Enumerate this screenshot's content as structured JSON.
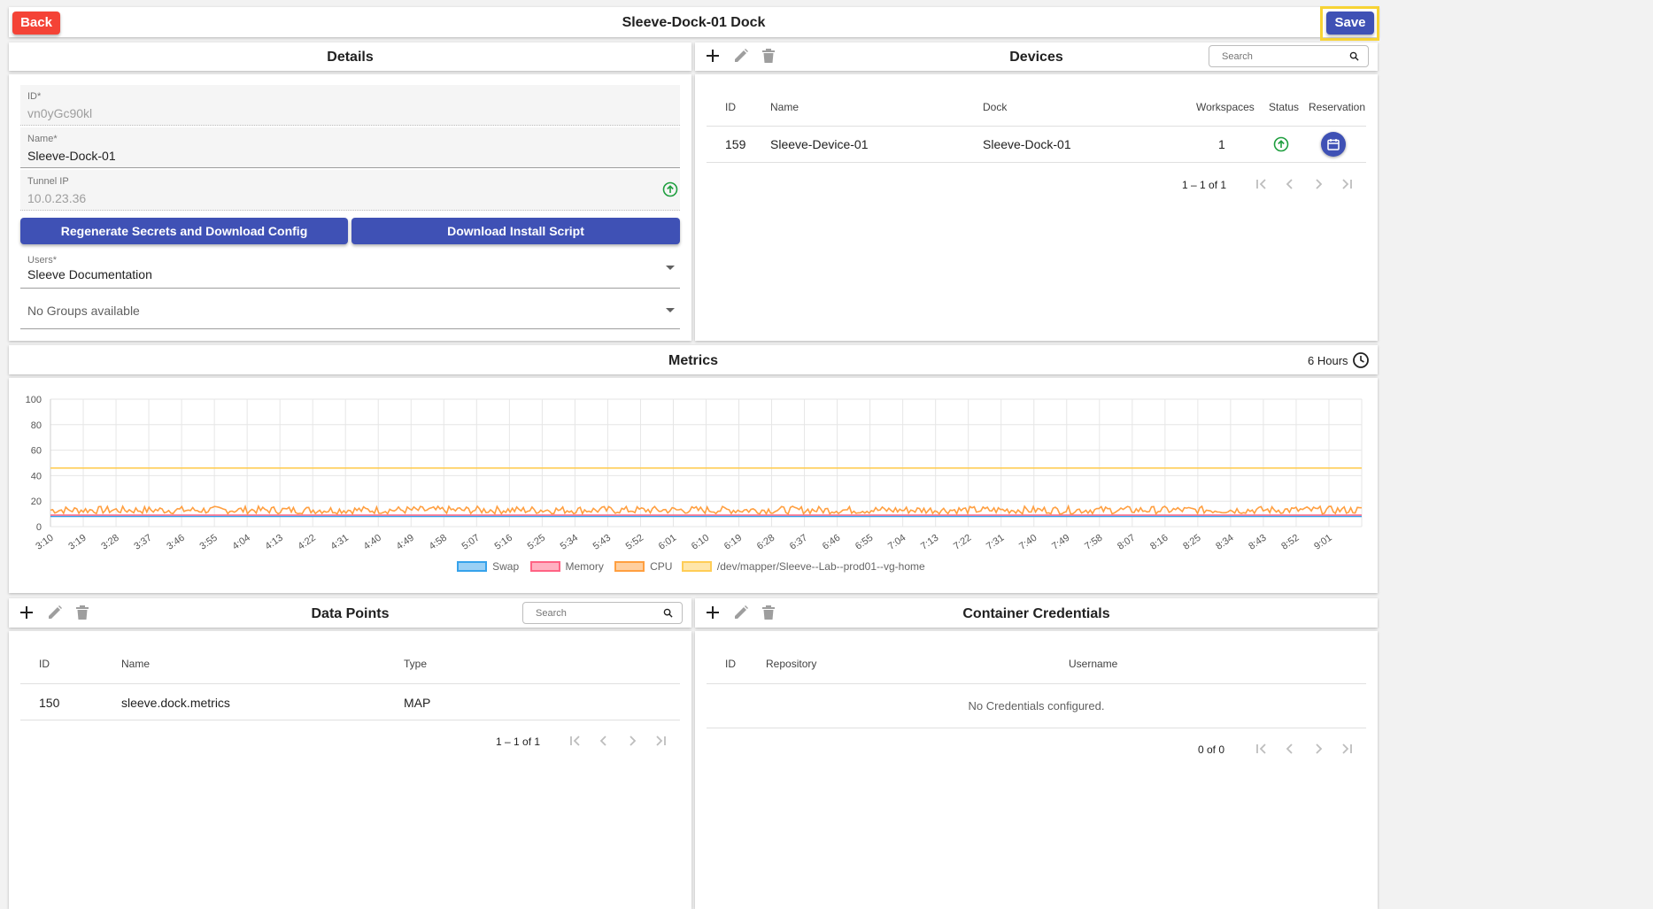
{
  "header": {
    "title": "Sleeve-Dock-01 Dock",
    "back_label": "Back",
    "save_label": "Save"
  },
  "details": {
    "title": "Details",
    "id_label": "ID*",
    "id_value": "vn0yGc90kl",
    "name_label": "Name*",
    "name_value": "Sleeve-Dock-01",
    "tunnel_label": "Tunnel IP",
    "tunnel_value": "10.0.23.36",
    "regen_label": "Regenerate Secrets and Download Config",
    "download_label": "Download Install Script",
    "users_label": "Users*",
    "users_value": "Sleeve Documentation",
    "groups_value": "No Groups available"
  },
  "devices": {
    "title": "Devices",
    "search_placeholder": "Search",
    "columns": [
      "ID",
      "Name",
      "Dock",
      "Workspaces",
      "Status",
      "Reservation"
    ],
    "rows": [
      {
        "id": "159",
        "name": "Sleeve-Device-01",
        "dock": "Sleeve-Dock-01",
        "workspaces": "1"
      }
    ],
    "pager": "1 – 1 of 1"
  },
  "metrics": {
    "title": "Metrics",
    "range_label": "6 Hours"
  },
  "chart_data": {
    "type": "line",
    "ylim": [
      0,
      100
    ],
    "yticks": [
      "100",
      "80",
      "60",
      "40",
      "20",
      "0"
    ],
    "categories": [
      "3:10",
      "3:19",
      "3:28",
      "3:37",
      "3:46",
      "3:55",
      "4:04",
      "4:13",
      "4:22",
      "4:31",
      "4:40",
      "4:49",
      "4:58",
      "5:07",
      "5:16",
      "5:25",
      "5:34",
      "5:43",
      "5:52",
      "6:01",
      "6:10",
      "6:19",
      "6:28",
      "6:37",
      "6:46",
      "6:55",
      "7:04",
      "7:13",
      "7:22",
      "7:31",
      "7:40",
      "7:49",
      "7:58",
      "8:07",
      "8:16",
      "8:25",
      "8:34",
      "8:43",
      "8:52",
      "9:01"
    ],
    "series": [
      {
        "name": "Swap",
        "value": 8,
        "color": "#36a2eb",
        "fill": "#9ad0f5"
      },
      {
        "name": "Memory",
        "value": 9,
        "color": "#ff6384",
        "fill": "#ffb1c1"
      },
      {
        "name": "CPU",
        "value": 13,
        "noise": 3,
        "color": "#ff9f40",
        "fill": "#ffcf9f"
      },
      {
        "name": "/dev/mapper/Sleeve--Lab--prod01--vg-home",
        "value": 46,
        "color": "#ffcd56",
        "fill": "#ffe6aa"
      }
    ],
    "grid": true
  },
  "datapoints": {
    "title": "Data Points",
    "search_placeholder": "Search",
    "columns": [
      "ID",
      "Name",
      "Type"
    ],
    "rows": [
      {
        "id": "150",
        "name": "sleeve.dock.metrics",
        "type": "MAP"
      }
    ],
    "pager": "1 – 1 of 1"
  },
  "credentials": {
    "title": "Container Credentials",
    "columns": [
      "ID",
      "Repository",
      "Username"
    ],
    "empty": "No Credentials configured.",
    "pager": "0 of 0"
  }
}
